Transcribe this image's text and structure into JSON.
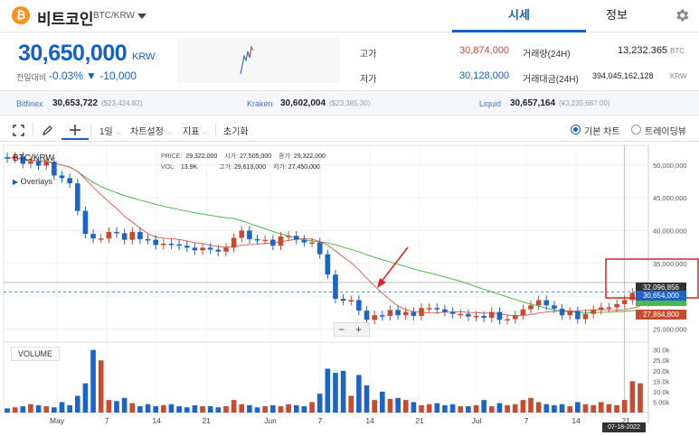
{
  "header": {
    "coin_logo": "₿",
    "coin_name": "비트코인",
    "pair": "BTC/KRW",
    "tabs": [
      {
        "label": "시세",
        "active": true
      },
      {
        "label": "정보",
        "active": false
      }
    ],
    "icons": {
      "dropdown": "chevron-down-icon",
      "settings": "gear-icon"
    }
  },
  "price_panel": {
    "price": "30,650,000",
    "unit": "KRW",
    "change_label": "전일대비",
    "change_pct": "-0.03%",
    "change_abs": "▼ -10,000",
    "high_label": "고가",
    "high_value": "30,874,000",
    "low_label": "저가",
    "low_value": "30,128,000",
    "volume_label": "거래량(24H)",
    "volume_value": "13,232.365",
    "volume_unit": "BTC",
    "amount_label": "거래대금(24H)",
    "amount_value": "394,045,162,128",
    "amount_unit": "KRW"
  },
  "exchanges": [
    {
      "name": "Bitfinex",
      "value": "30,653,722",
      "usd": "($23,424.82)"
    },
    {
      "name": "Kraken",
      "value": "30,602,004",
      "usd": "($23,385.30)"
    },
    {
      "name": "Liquid",
      "value": "30,657,164",
      "usd": "(¥3,235,687.00)"
    }
  ],
  "toolbar": {
    "interval": "1일",
    "chart_settings": "차트설정",
    "indicators": "지표",
    "reset": "초기화",
    "chart_modes": [
      {
        "label": "기본 차트",
        "selected": true
      },
      {
        "label": "트레이딩뷰",
        "selected": false
      }
    ]
  },
  "chart_labels": {
    "symbol": "BTC/KRW",
    "overlays": "Overlays",
    "price_lbl": "PRICE:",
    "price_val": "29,322,000",
    "open_lbl": "시가:",
    "open_val": "27,505,000",
    "close_lbl": "종가:",
    "close_val": "29,322,000",
    "vol_lbl": "VOL:",
    "vol_val": "13.9K",
    "high_lbl": "고가:",
    "high_val": "29,613,000",
    "low_lbl": "저가:",
    "low_val": "27,450,000",
    "volume_panel": "VOLUME",
    "zoom_out": "−",
    "zoom_in": "+",
    "crosshair_date": "07-18-2022",
    "tag_high": "32,096,856",
    "tag_current": "30,654,000",
    "tag_ma": "27,864,800"
  },
  "chart_data": {
    "type": "candlestick",
    "x_ticks": [
      "May",
      "7",
      "14",
      "21",
      "Jun",
      "7",
      "14",
      "21",
      "Jul",
      "7",
      "14",
      "21"
    ],
    "y_ticks": [
      "50,000,000",
      "45,000,000",
      "40,000,000",
      "35,000,000",
      "30,000,000",
      "25,000,000"
    ],
    "ylim": [
      23000000,
      53000000
    ],
    "volume_ticks": [
      "30.0k",
      "25.0k",
      "20.0k",
      "15.0k",
      "10.0k",
      "5.00k"
    ],
    "volume_ylim": [
      0,
      32000
    ],
    "colors": {
      "up": "#c84a31",
      "down": "#1d64c8",
      "ma_short": "#e0655a",
      "ma_long": "#4bb84b",
      "current_line": "#4a8fe7"
    },
    "candles_open": [
      51.2,
      51.0,
      51.3,
      50.2,
      50.6,
      49.9,
      50.5,
      48.4,
      48.0,
      47.2,
      43.0,
      39.5,
      38.8,
      38.8,
      39.8,
      39.6,
      38.6,
      39.8,
      38.7,
      38.6,
      37.8,
      38.0,
      37.9,
      37.7,
      37.4,
      37.0,
      37.4,
      37.1,
      36.8,
      37.4,
      38.9,
      40.0,
      38.7,
      38.6,
      38.6,
      37.7,
      39.1,
      39.2,
      38.6,
      38.2,
      38.2,
      36.4,
      33.3,
      29.6,
      29.3,
      29.4,
      27.8,
      26.4,
      27.1,
      27.0,
      27.9,
      27.1,
      27.6,
      27.0,
      28.2,
      28.2,
      28.0,
      27.6,
      27.3,
      27.3,
      26.9,
      27.0,
      26.7,
      27.6,
      26.4,
      26.5,
      27.1,
      28.0,
      28.6,
      29.4,
      28.6,
      28.1,
      27.1,
      27.7,
      26.5,
      27.3,
      27.9,
      28.3,
      28.3,
      28.8,
      29.4,
      30.5
    ],
    "candles_close": [
      51.0,
      51.3,
      50.2,
      50.6,
      49.9,
      50.5,
      48.4,
      48.0,
      47.2,
      43.0,
      39.5,
      38.8,
      38.8,
      39.8,
      39.6,
      38.6,
      39.8,
      38.7,
      38.6,
      37.8,
      38.0,
      37.9,
      37.7,
      37.4,
      37.0,
      37.4,
      37.1,
      36.8,
      37.4,
      38.9,
      40.0,
      38.7,
      38.6,
      38.6,
      37.7,
      39.1,
      39.2,
      38.6,
      38.2,
      38.2,
      36.4,
      33.3,
      29.6,
      29.3,
      29.4,
      27.8,
      26.4,
      27.1,
      27.0,
      27.9,
      27.1,
      27.6,
      27.0,
      28.2,
      28.2,
      28.0,
      27.6,
      27.3,
      27.3,
      26.9,
      27.0,
      26.7,
      27.6,
      26.4,
      26.5,
      27.1,
      28.0,
      28.6,
      29.4,
      28.6,
      28.1,
      27.1,
      27.7,
      26.5,
      27.3,
      27.9,
      28.3,
      28.3,
      28.8,
      29.4,
      30.5,
      30.65
    ],
    "volumes": [
      2.0,
      2.5,
      3.0,
      4.0,
      3.5,
      3.0,
      2.5,
      5.0,
      3.5,
      8.0,
      14.0,
      30.0,
      25.0,
      6.0,
      5.5,
      7.0,
      4.5,
      3.0,
      4.0,
      3.0,
      3.5,
      4.0,
      3.0,
      2.5,
      3.5,
      3.0,
      3.0,
      2.5,
      3.0,
      6.0,
      4.0,
      3.5,
      2.5,
      3.0,
      3.5,
      3.0,
      4.0,
      3.5,
      3.0,
      5.0,
      9.0,
      21.0,
      19.0,
      20.0,
      8.0,
      18.0,
      13.0,
      6.0,
      10.0,
      6.5,
      7.0,
      6.0,
      5.0,
      3.5,
      4.0,
      4.5,
      3.5,
      4.0,
      3.0,
      3.0,
      3.5,
      6.0,
      3.0,
      4.5,
      3.5,
      4.0,
      6.0,
      7.0,
      5.0,
      4.0,
      3.5,
      4.0,
      3.0,
      5.0,
      4.0,
      3.5,
      5.0,
      4.0,
      3.5,
      6.0,
      15.0,
      14.0
    ]
  }
}
